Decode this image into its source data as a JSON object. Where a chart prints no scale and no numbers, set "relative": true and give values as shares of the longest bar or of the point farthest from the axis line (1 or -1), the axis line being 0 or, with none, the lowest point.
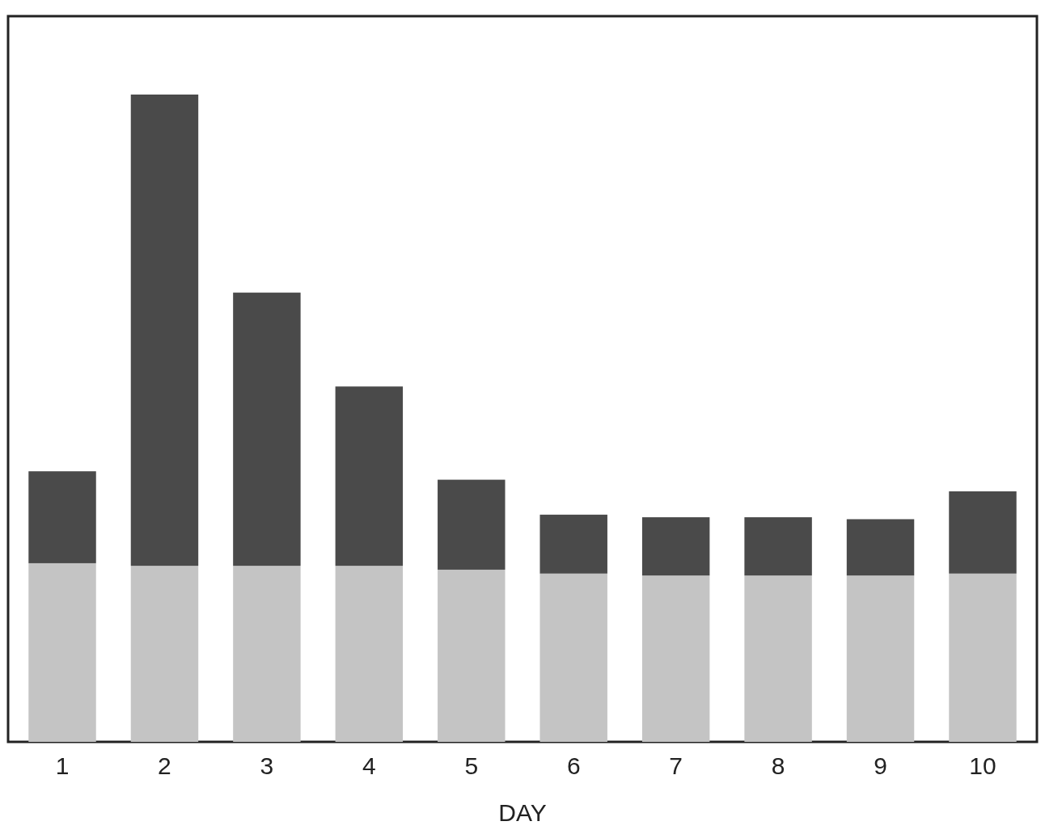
{
  "chart_data": {
    "type": "bar",
    "xlabel": "DAY",
    "categories": [
      "1",
      "2",
      "3",
      "4",
      "5",
      "6",
      "7",
      "8",
      "9",
      "10"
    ],
    "stacked": true,
    "relative": true,
    "series": [
      {
        "color": "#c4c4c4",
        "values": [
          0.276,
          0.272,
          0.272,
          0.272,
          0.266,
          0.26,
          0.257,
          0.257,
          0.257,
          0.26
        ]
      },
      {
        "color": "#4a4a4a",
        "values": [
          0.142,
          0.728,
          0.422,
          0.277,
          0.139,
          0.091,
          0.09,
          0.09,
          0.087,
          0.127
        ]
      }
    ]
  }
}
